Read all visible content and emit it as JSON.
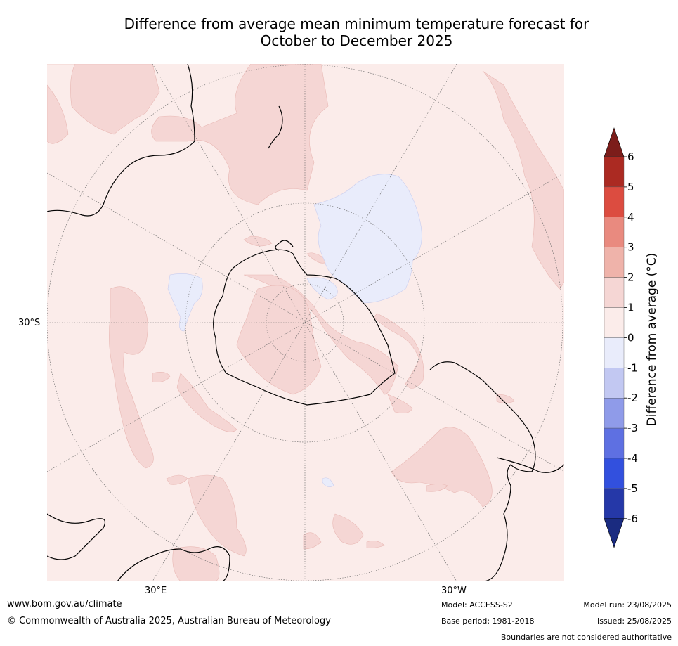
{
  "title_line1": "Difference from average mean minimum temperature forecast for",
  "title_line2": "October to December 2025",
  "lat_label": "30°S",
  "lon_labels": [
    "30°E",
    "30°W"
  ],
  "colorbar": {
    "title": "Difference from average (°C)",
    "ticks": [
      "6",
      "5",
      "4",
      "3",
      "2",
      "1",
      "0",
      "-1",
      "-2",
      "-3",
      "-4",
      "-5",
      "-6"
    ],
    "colors": [
      "#7c1d1a",
      "#ab2a22",
      "#dc4c40",
      "#e98a7f",
      "#efb3aa",
      "#f5d6d4",
      "#fbecea",
      "#e9ecfb",
      "#c2c8f2",
      "#8f9be9",
      "#5e70e2",
      "#3250de",
      "#2538a8",
      "#1a2b80"
    ]
  },
  "footer": {
    "url": "www.bom.gov.au/climate",
    "copyright": "© Commonwealth of Australia 2025, Australian Bureau of Meteorology",
    "model": "Model: ACCESS-S2",
    "base_period": "Base period: 1981-2018",
    "model_run": "Model run: 23/08/2025",
    "issued": "Issued: 25/08/2025",
    "disclaimer": "Boundaries are not considered authoritative"
  }
}
